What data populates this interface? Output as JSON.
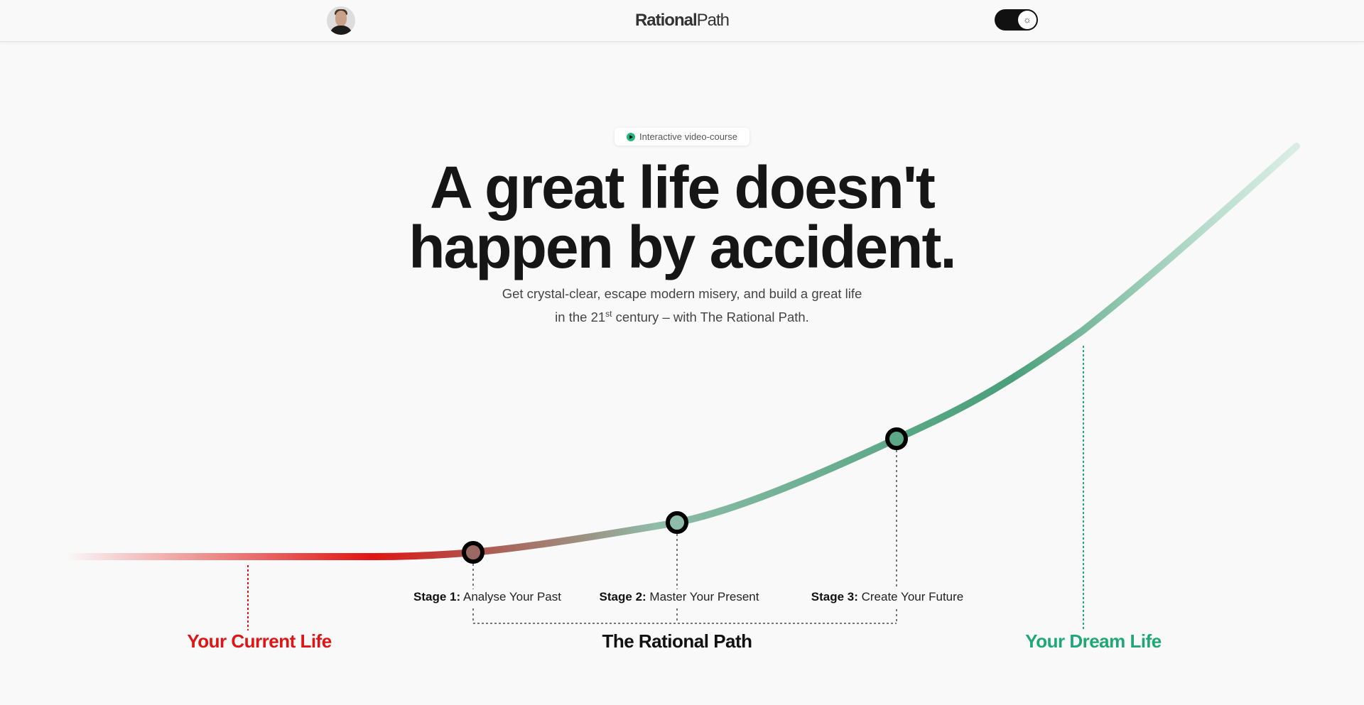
{
  "header": {
    "logo_bold": "Rational",
    "logo_light": "Path",
    "avatar_icon": "user-avatar",
    "theme_toggle_icon": "sun-icon"
  },
  "hero": {
    "badge": "Interactive video-course",
    "badge_icon": "play-icon",
    "headline_line1": "A great life doesn't",
    "headline_line2": "happen by accident.",
    "subtitle_line1": "Get crystal-clear, escape modern misery, and build a great life",
    "subtitle_line2_pre": "in the 21",
    "subtitle_line2_sup": "st",
    "subtitle_line2_post": " century – with The Rational Path."
  },
  "path": {
    "stages": [
      {
        "label": "Stage 1:",
        "title": "Analyse Your Past"
      },
      {
        "label": "Stage 2:",
        "title": "Master Your Present"
      },
      {
        "label": "Stage 3:",
        "title": "Create Your Future"
      }
    ],
    "current_life": "Your Current Life",
    "rational_path": "The Rational Path",
    "dream_life": "Your Dream Life",
    "colors": {
      "red": "#e01414",
      "green": "#1fa877",
      "curve_green": "#4aa37e"
    }
  }
}
